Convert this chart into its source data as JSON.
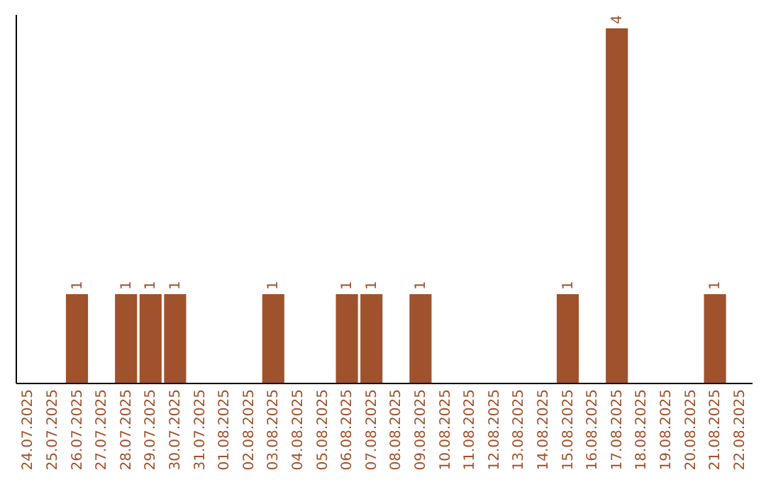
{
  "chart_data": {
    "type": "bar",
    "categories": [
      "24.07.2025",
      "25.07.2025",
      "26.07.2025",
      "27.07.2025",
      "28.07.2025",
      "29.07.2025",
      "30.07.2025",
      "31.07.2025",
      "01.08.2025",
      "02.08.2025",
      "03.08.2025",
      "04.08.2025",
      "05.08.2025",
      "06.08.2025",
      "07.08.2025",
      "08.08.2025",
      "09.08.2025",
      "10.08.2025",
      "11.08.2025",
      "12.08.2025",
      "13.08.2025",
      "14.08.2025",
      "15.08.2025",
      "16.08.2025",
      "17.08.2025",
      "18.08.2025",
      "19.08.2025",
      "20.08.2025",
      "21.08.2025",
      "22.08.2025"
    ],
    "values": [
      0,
      0,
      1,
      0,
      1,
      1,
      1,
      0,
      0,
      0,
      1,
      0,
      0,
      1,
      1,
      0,
      1,
      0,
      0,
      0,
      0,
      0,
      1,
      0,
      4,
      0,
      0,
      0,
      1,
      0
    ],
    "value_labels": [
      null,
      null,
      "1",
      null,
      "1",
      "1",
      "1",
      null,
      null,
      null,
      "1",
      null,
      null,
      "1",
      "1",
      null,
      "1",
      null,
      null,
      null,
      null,
      null,
      "1",
      null,
      "4",
      null,
      null,
      null,
      "1",
      null
    ],
    "color": "#a0522d",
    "ylim": [
      0,
      4.16
    ],
    "tick_labels": "x",
    "grid": false
  }
}
